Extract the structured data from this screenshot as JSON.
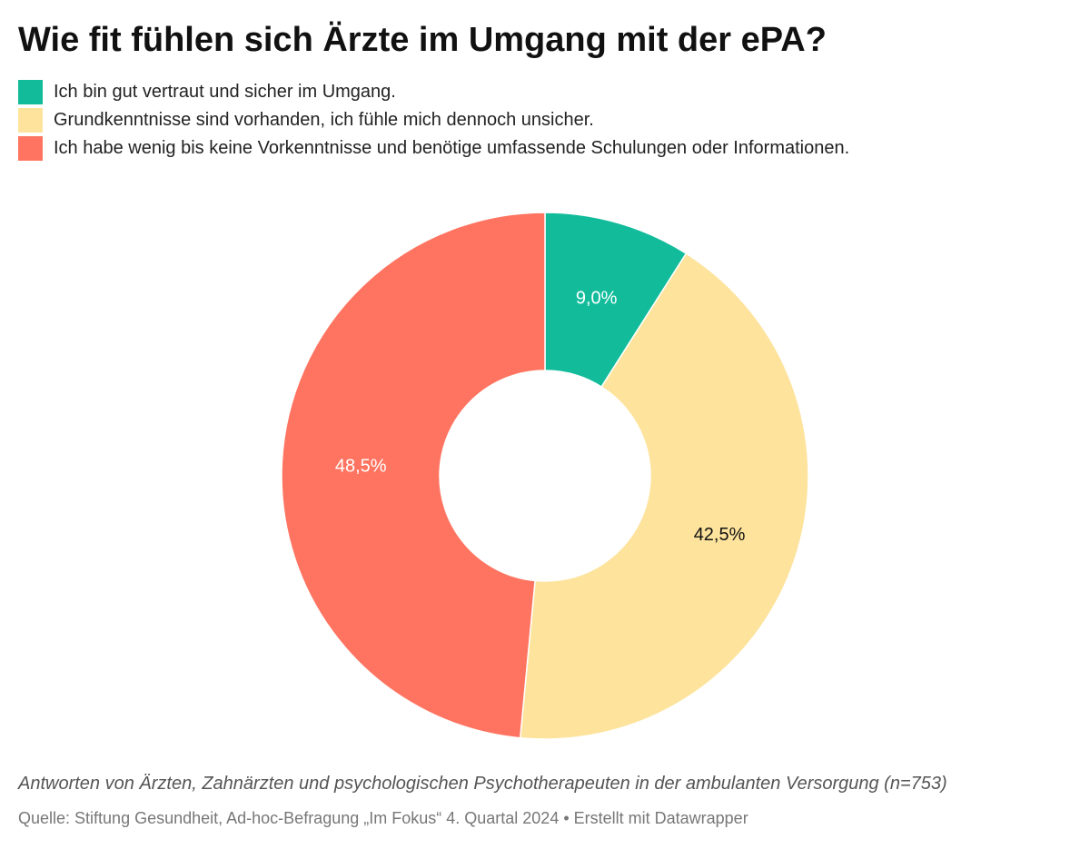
{
  "title": "Wie fit fühlen sich Ärzte im Umgang mit der ePA?",
  "legend": [
    {
      "label": "Ich bin gut vertraut und sicher im Umgang.",
      "color": "#12bc9b"
    },
    {
      "label": "Grundkenntnisse sind vorhanden, ich fühle mich dennoch unsicher.",
      "color": "#fde39c"
    },
    {
      "label": "Ich habe wenig bis keine Vorkenntnisse und benötige umfassende Schulungen oder Informationen.",
      "color": "#ff7460"
    }
  ],
  "chart_data": {
    "type": "pie",
    "variant": "donut",
    "title": "Wie fit fühlen sich Ärzte im Umgang mit der ePA?",
    "categories": [
      "Ich bin gut vertraut und sicher im Umgang.",
      "Grundkenntnisse sind vorhanden, ich fühle mich dennoch unsicher.",
      "Ich habe wenig bis keine Vorkenntnisse und benötige umfassende Schulungen oder Informationen."
    ],
    "values": [
      9.0,
      42.5,
      48.5
    ],
    "labels": [
      "9,0%",
      "42,5%",
      "48,5%"
    ],
    "colors": [
      "#12bc9b",
      "#fde39c",
      "#ff7460"
    ],
    "label_colors": [
      "#ffffff",
      "#111111",
      "#ffffff"
    ],
    "legend_position": "top-left"
  },
  "note": "Antworten von Ärzten, Zahnärzten und psychologischen Psychotherapeuten in der ambulanten Versorgung (n=753)",
  "source": "Quelle: Stiftung Gesundheit, Ad-hoc-Befragung „Im Fokus“ 4. Quartal 2024 • Erstellt mit Datawrapper"
}
